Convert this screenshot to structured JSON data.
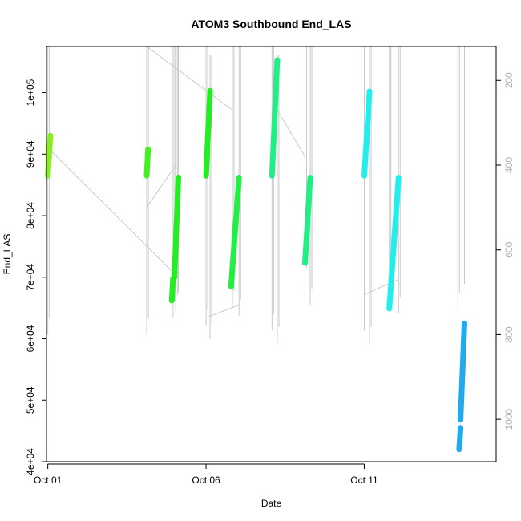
{
  "chart_data": {
    "type": "line",
    "title": "ATOM3 Southbound End_LAS",
    "xlabel": "Date",
    "ylabel": "End_LAS",
    "xlim": [
      "2023-09-30T23:00",
      "2023-10-15T04:00"
    ],
    "ylim": [
      40000,
      107500
    ],
    "y2lim": [
      1100,
      120
    ],
    "x_ticks": [
      {
        "x": "2023-10-01T00:00",
        "label": "Oct 01"
      },
      {
        "x": "2023-10-06T00:00",
        "label": "Oct 06"
      },
      {
        "x": "2023-10-11T00:00",
        "label": "Oct 11"
      }
    ],
    "y_ticks": [
      {
        "y": 40000,
        "label": "4e+04"
      },
      {
        "y": 50000,
        "label": "5e+04"
      },
      {
        "y": 60000,
        "label": "6e+04"
      },
      {
        "y": 70000,
        "label": "7e+04"
      },
      {
        "y": 80000,
        "label": "8e+04"
      },
      {
        "y": 90000,
        "label": "9e+04"
      },
      {
        "y": 100000,
        "label": "1e+05"
      }
    ],
    "y2_ticks": [
      {
        "y": 200,
        "label": "200"
      },
      {
        "y": 400,
        "label": "400"
      },
      {
        "y": 600,
        "label": "600"
      },
      {
        "y": 800,
        "label": "800"
      },
      {
        "y": 1000,
        "label": "1000"
      }
    ],
    "series": [
      {
        "color": "#88ee22",
        "points": [
          {
            "x": "2023-10-01T00:00",
            "y": 86500
          },
          {
            "x": "2023-10-01T02:00",
            "y": 93000
          }
        ]
      },
      {
        "color": "#44ee22",
        "points": [
          {
            "x": "2023-10-04T03:00",
            "y": 86500
          },
          {
            "x": "2023-10-04T04:00",
            "y": 90800
          }
        ]
      },
      {
        "color": "#22ee22",
        "points": [
          {
            "x": "2023-10-04T22:00",
            "y": 66200
          },
          {
            "x": "2023-10-04T23:00",
            "y": 69800
          }
        ]
      },
      {
        "color": "#22ee22",
        "points": [
          {
            "x": "2023-10-05T00:00",
            "y": 70000
          },
          {
            "x": "2023-10-05T03:00",
            "y": 86200
          }
        ]
      },
      {
        "color": "#22ee22",
        "points": [
          {
            "x": "2023-10-06T00:00",
            "y": 86500
          },
          {
            "x": "2023-10-06T03:00",
            "y": 100300
          }
        ]
      },
      {
        "color": "#22ee44",
        "points": [
          {
            "x": "2023-10-06T19:00",
            "y": 68500
          },
          {
            "x": "2023-10-07T01:00",
            "y": 86200
          }
        ]
      },
      {
        "color": "#22ee88",
        "points": [
          {
            "x": "2023-10-08T02:00",
            "y": 86500
          },
          {
            "x": "2023-10-08T06:00",
            "y": 105300
          }
        ]
      },
      {
        "color": "#22ee88",
        "points": [
          {
            "x": "2023-10-09T03:00",
            "y": 72300
          },
          {
            "x": "2023-10-09T07:00",
            "y": 86200
          }
        ]
      },
      {
        "color": "#22eeee",
        "points": [
          {
            "x": "2023-10-11T00:00",
            "y": 86500
          },
          {
            "x": "2023-10-11T04:00",
            "y": 100200
          }
        ]
      },
      {
        "color": "#22eeee",
        "points": [
          {
            "x": "2023-10-11T19:00",
            "y": 64900
          },
          {
            "x": "2023-10-12T02:00",
            "y": 86200
          }
        ]
      },
      {
        "color": "#22aaee",
        "points": [
          {
            "x": "2023-10-14T00:00",
            "y": 42000
          },
          {
            "x": "2023-10-14T01:00",
            "y": 45500
          }
        ]
      },
      {
        "color": "#22aaee",
        "points": [
          {
            "x": "2023-10-14T01:00",
            "y": 46800
          },
          {
            "x": "2023-10-14T04:00",
            "y": 62500
          }
        ]
      }
    ],
    "background_trace": {
      "color": "#c8c8c8",
      "verticals": [
        {
          "x": "2023-10-01T00:00",
          "y2": [
            120,
            800
          ]
        },
        {
          "x": "2023-10-04T03:00",
          "y2": [
            120,
            800
          ]
        },
        {
          "x": "2023-10-04T23:00",
          "y2": [
            120,
            760
          ]
        },
        {
          "x": "2023-10-05T01:00",
          "y2": [
            120,
            745
          ]
        },
        {
          "x": "2023-10-05T03:00",
          "y2": [
            120,
            700
          ]
        },
        {
          "x": "2023-10-06T00:00",
          "y2": [
            120,
            780
          ]
        },
        {
          "x": "2023-10-06T03:00",
          "y2": [
            140,
            810
          ]
        },
        {
          "x": "2023-10-06T20:00",
          "y2": [
            120,
            735
          ]
        },
        {
          "x": "2023-10-07T01:00",
          "y2": [
            120,
            755
          ]
        },
        {
          "x": "2023-10-08T02:00",
          "y2": [
            120,
            790
          ]
        },
        {
          "x": "2023-10-08T06:00",
          "y2": [
            140,
            820
          ]
        },
        {
          "x": "2023-10-09T03:00",
          "y2": [
            120,
            680
          ]
        },
        {
          "x": "2023-10-09T07:00",
          "y2": [
            120,
            730
          ]
        },
        {
          "x": "2023-10-11T00:00",
          "y2": [
            120,
            790
          ]
        },
        {
          "x": "2023-10-11T04:00",
          "y2": [
            120,
            820
          ]
        },
        {
          "x": "2023-10-11T19:00",
          "y2": [
            120,
            720
          ]
        },
        {
          "x": "2023-10-12T02:00",
          "y2": [
            120,
            750
          ]
        },
        {
          "x": "2023-10-13T23:00",
          "y2": [
            120,
            740
          ]
        },
        {
          "x": "2023-10-14T04:00",
          "y2": [
            120,
            680
          ]
        }
      ],
      "connectors": [
        [
          {
            "x": "2023-10-01T02:00",
            "y2": 365
          },
          {
            "x": "2023-10-04T22:00",
            "y2": 650
          }
        ],
        [
          {
            "x": "2023-10-04T03:00",
            "y2": 120
          },
          {
            "x": "2023-10-06T20:00",
            "y2": 270
          }
        ],
        [
          {
            "x": "2023-10-04T03:00",
            "y2": 500
          },
          {
            "x": "2023-10-05T01:00",
            "y2": 400
          }
        ],
        [
          {
            "x": "2023-10-06T00:00",
            "y2": 760
          },
          {
            "x": "2023-10-07T01:00",
            "y2": 730
          }
        ],
        [
          {
            "x": "2023-10-08T06:00",
            "y2": 270
          },
          {
            "x": "2023-10-09T03:00",
            "y2": 380
          }
        ],
        [
          {
            "x": "2023-10-11T00:00",
            "y2": 705
          },
          {
            "x": "2023-10-12T02:00",
            "y2": 670
          }
        ]
      ]
    },
    "grid": false,
    "legend": "none"
  }
}
